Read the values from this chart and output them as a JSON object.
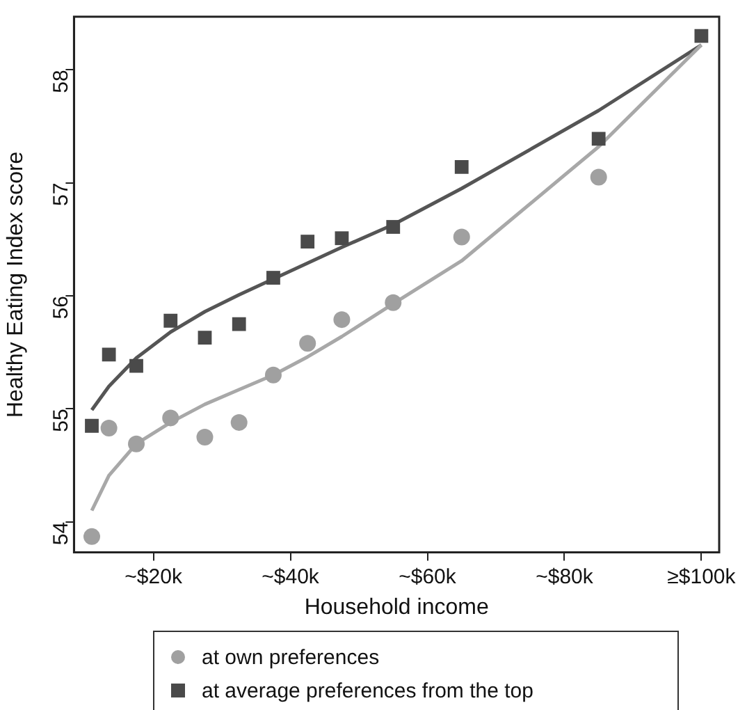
{
  "chart_data": {
    "type": "scatter",
    "xlabel": "Household income",
    "ylabel": "Healthy Eating Index score",
    "xlim": [
      8.4,
      102.6
    ],
    "ylim": [
      53.73,
      58.47
    ],
    "xticks": [
      {
        "value": 20,
        "label": "~$20k"
      },
      {
        "value": 40,
        "label": "~$40k"
      },
      {
        "value": 60,
        "label": "~$60k"
      },
      {
        "value": 80,
        "label": "~$80k"
      },
      {
        "value": 100,
        "label": "≥$100k"
      }
    ],
    "yticks": [
      54,
      55,
      56,
      57,
      58
    ],
    "x": [
      11,
      13.5,
      17.5,
      22.5,
      27.5,
      32.5,
      37.5,
      42.5,
      47.5,
      55,
      65,
      85,
      100
    ],
    "grid": false,
    "legend": "bottom",
    "series": [
      {
        "name": "at own preferences",
        "type": "scatter",
        "marker": "circle",
        "color": "#a0a0a0",
        "values": [
          53.87,
          54.83,
          54.69,
          54.92,
          54.75,
          54.88,
          55.3,
          55.58,
          55.79,
          55.94,
          56.52,
          57.05,
          null
        ]
      },
      {
        "name": "at average preferences from the top",
        "type": "scatter",
        "marker": "square",
        "color": "#4a4a4a",
        "values": [
          54.85,
          55.48,
          55.38,
          55.78,
          55.63,
          55.75,
          56.16,
          56.48,
          56.51,
          56.61,
          57.14,
          57.39,
          58.3
        ]
      },
      {
        "type": "line",
        "marker": "none",
        "color": "#a8a8a8",
        "values": [
          54.1,
          54.41,
          54.69,
          54.88,
          55.04,
          55.17,
          55.3,
          55.46,
          55.64,
          55.93,
          56.31,
          57.32,
          58.22
        ]
      },
      {
        "type": "line",
        "marker": "none",
        "color": "#555555",
        "values": [
          54.99,
          55.2,
          55.45,
          55.68,
          55.86,
          56.01,
          56.15,
          56.29,
          56.43,
          56.63,
          56.95,
          57.64,
          58.22
        ]
      }
    ]
  }
}
